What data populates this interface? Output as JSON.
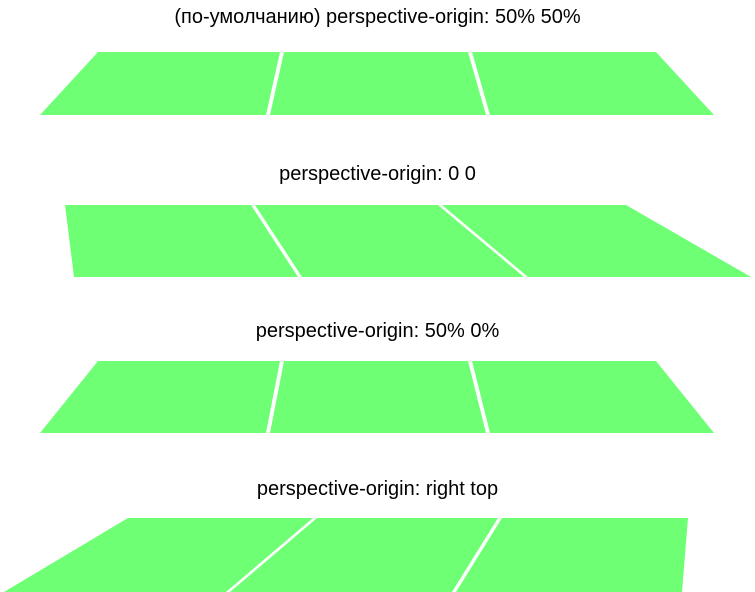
{
  "examples": [
    {
      "caption": "(по-умолчанию) perspective-origin: 50% 50%"
    },
    {
      "caption": "perspective-origin: 0 0"
    },
    {
      "caption": "perspective-origin: 50% 0%"
    },
    {
      "caption": "perspective-origin: right top"
    }
  ],
  "colors": {
    "tile_fill": "#6fff75",
    "gap": "#ffffff",
    "text": "#000000"
  }
}
